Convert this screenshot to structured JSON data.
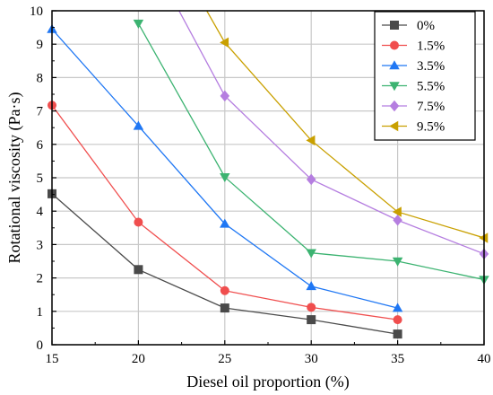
{
  "chart_data": {
    "type": "line",
    "title": "",
    "xlabel": "Diesel oil proportion (%)",
    "ylabel": "Rotational viscosity (Pa·s)",
    "xlim": [
      15,
      40
    ],
    "ylim": [
      0,
      10
    ],
    "xticks": [
      "15",
      "20",
      "25",
      "30",
      "35",
      "40"
    ],
    "yticks": [
      "0",
      "1",
      "2",
      "3",
      "4",
      "5",
      "6",
      "7",
      "8",
      "9",
      "10"
    ],
    "grid": true,
    "legend_position": "top-right",
    "series": [
      {
        "name": "0%",
        "color": "#4a4a4a",
        "marker": "square",
        "points": [
          [
            15,
            4.52
          ],
          [
            20,
            2.25
          ],
          [
            25,
            1.1
          ],
          [
            30,
            0.75
          ],
          [
            35,
            0.32
          ]
        ]
      },
      {
        "name": "1.5%",
        "color": "#f04e4e",
        "marker": "circle",
        "points": [
          [
            15,
            7.17
          ],
          [
            20,
            3.67
          ],
          [
            25,
            1.62
          ],
          [
            30,
            1.12
          ],
          [
            35,
            0.75
          ]
        ]
      },
      {
        "name": "3.5%",
        "color": "#1f77f4",
        "marker": "triangle-up",
        "points": [
          [
            15,
            9.45
          ],
          [
            20,
            6.55
          ],
          [
            25,
            3.62
          ],
          [
            30,
            1.75
          ],
          [
            35,
            1.1
          ]
        ]
      },
      {
        "name": "5.5%",
        "color": "#3cb371",
        "marker": "triangle-down",
        "points": [
          [
            20,
            9.62
          ],
          [
            25,
            5.02
          ],
          [
            30,
            2.75
          ],
          [
            35,
            2.5
          ],
          [
            40,
            1.95
          ]
        ]
      },
      {
        "name": "7.5%",
        "color": "#b57ee0",
        "marker": "diamond",
        "points": [
          [
            22.3,
            10.05
          ],
          [
            25,
            7.45
          ],
          [
            30,
            4.95
          ],
          [
            35,
            3.73
          ],
          [
            40,
            2.72
          ]
        ]
      },
      {
        "name": "9.5%",
        "color": "#c9a000",
        "marker": "triangle-left",
        "points": [
          [
            23.9,
            10.05
          ],
          [
            25,
            9.05
          ],
          [
            30,
            6.12
          ],
          [
            35,
            3.98
          ],
          [
            40,
            3.2
          ]
        ]
      }
    ]
  }
}
